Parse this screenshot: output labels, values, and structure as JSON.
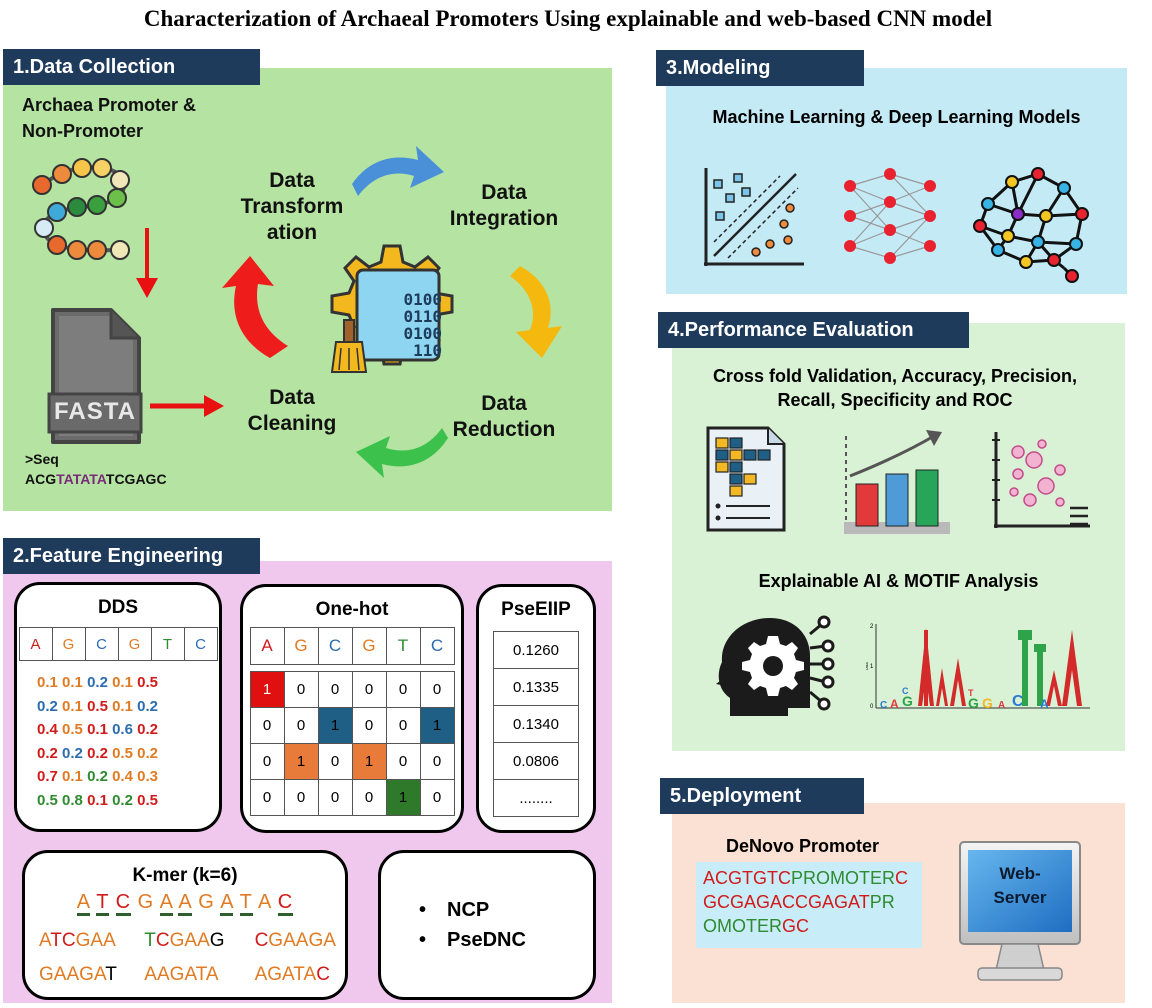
{
  "title": "Characterization of Archaeal Promoters Using explainable and web-based CNN model",
  "section1": {
    "header": "1.Data Collection",
    "subtitle_line1": "Archaea Promoter &",
    "subtitle_line2": "Non-Promoter",
    "fasta_label": "FASTA",
    "seq_header": ">Seq",
    "seq_a": "ACG",
    "seq_b": "TATATA",
    "seq_c": "TCGAGC",
    "cycle": {
      "transformation_1": "Data",
      "transformation_2": "Transform",
      "transformation_3": "ation",
      "integration_1": "Data",
      "integration_2": "Integration",
      "reduction_1": "Data",
      "reduction_2": "Reduction",
      "cleaning_1": "Data",
      "cleaning_2": "Cleaning"
    },
    "binary": [
      "0100",
      "0110",
      "0100",
      "110"
    ]
  },
  "section2": {
    "header": "2.Feature Engineering",
    "dds": {
      "title": "DDS",
      "letters": [
        "A",
        "G",
        "C",
        "G",
        "T",
        "C"
      ],
      "rows": [
        [
          [
            "0.1",
            "o"
          ],
          [
            "0.1",
            "o"
          ],
          [
            "0.2",
            "b"
          ],
          [
            "0.1",
            "o"
          ],
          [
            "0.5",
            "r"
          ]
        ],
        [
          [
            "0.2",
            "b"
          ],
          [
            "0.1",
            "o"
          ],
          [
            "0.5",
            "r"
          ],
          [
            "0.1",
            "o"
          ],
          [
            "0.2",
            "b"
          ]
        ],
        [
          [
            "0.4",
            "r"
          ],
          [
            "0.5",
            "o"
          ],
          [
            "0.1",
            "r"
          ],
          [
            "0.6",
            "b"
          ],
          [
            "0.2",
            "r"
          ]
        ],
        [
          [
            "0.2",
            "r"
          ],
          [
            "0.2",
            "b"
          ],
          [
            "0.2",
            "r"
          ],
          [
            "0.5",
            "o"
          ],
          [
            "0.2",
            "o"
          ]
        ],
        [
          [
            "0.7",
            "r"
          ],
          [
            "0.1",
            "o"
          ],
          [
            "0.2",
            "g"
          ],
          [
            "0.4",
            "o"
          ],
          [
            "0.3",
            "o"
          ]
        ],
        [
          [
            "0.5",
            "g"
          ],
          [
            "0.8",
            "g"
          ],
          [
            "0.1",
            "r"
          ],
          [
            "0.2",
            "g"
          ],
          [
            "0.5",
            "r"
          ]
        ]
      ]
    },
    "onehot": {
      "title": "One-hot",
      "letters": [
        "A",
        "G",
        "C",
        "G",
        "T",
        "C"
      ],
      "rows": [
        [
          "1",
          "0",
          "0",
          "0",
          "0",
          "0"
        ],
        [
          "0",
          "0",
          "1",
          "0",
          "0",
          "1"
        ],
        [
          "0",
          "1",
          "0",
          "1",
          "0",
          "0"
        ],
        [
          "0",
          "0",
          "0",
          "0",
          "1",
          "0"
        ]
      ]
    },
    "pseeiip": {
      "title": "PseEIIP",
      "values": [
        "0.1260",
        "0.1335",
        "0.1340",
        "0.0806",
        "........"
      ]
    },
    "kmer": {
      "title": "K-mer (k=6)",
      "seq": [
        "A",
        "T",
        "C",
        "G",
        "A",
        "A",
        "G",
        "A",
        "T",
        "A",
        "C"
      ],
      "words": [
        [
          [
            "A",
            "o"
          ],
          [
            "T",
            "r"
          ],
          [
            "C",
            "r"
          ],
          [
            "G",
            "o"
          ],
          [
            "A",
            "o"
          ],
          [
            "A",
            "o"
          ]
        ],
        [
          [
            "T",
            "g"
          ],
          [
            "C",
            "r"
          ],
          [
            "G",
            "o"
          ],
          [
            "A",
            "o"
          ],
          [
            "A",
            "o"
          ],
          [
            "G",
            "k"
          ]
        ],
        [
          [
            "C",
            "r"
          ],
          [
            "G",
            "o"
          ],
          [
            "A",
            "o"
          ],
          [
            "A",
            "o"
          ],
          [
            "G",
            "o"
          ],
          [
            "A",
            "o"
          ]
        ],
        [
          [
            "G",
            "o"
          ],
          [
            "A",
            "o"
          ],
          [
            "A",
            "o"
          ],
          [
            "G",
            "o"
          ],
          [
            "A",
            "o"
          ],
          [
            "T",
            "k"
          ]
        ],
        [
          [
            "A",
            "o"
          ],
          [
            "A",
            "o"
          ],
          [
            "G",
            "o"
          ],
          [
            "A",
            "o"
          ],
          [
            "T",
            "o"
          ],
          [
            "A",
            "o"
          ]
        ],
        [
          [
            "A",
            "o"
          ],
          [
            "G",
            "o"
          ],
          [
            "A",
            "o"
          ],
          [
            "T",
            "o"
          ],
          [
            "A",
            "o"
          ],
          [
            "C",
            "r"
          ]
        ]
      ]
    },
    "others": [
      "NCP",
      "PseDNC"
    ]
  },
  "section3": {
    "header": "3.Modeling",
    "subtitle": "Machine Learning & Deep Learning Models"
  },
  "section4": {
    "header": "4.Performance Evaluation",
    "subtitle_1": "Cross fold Validation, Accuracy, Precision,",
    "subtitle_2": "Recall, Specificity  and ROC",
    "subtitle_3": "Explainable AI & MOTIF Analysis",
    "logo_ylabel": "bits",
    "logo_y_2": "2",
    "logo_y_1": "1",
    "logo_y_0": "0"
  },
  "section5": {
    "header": "5.Deployment",
    "subtitle": "DeNovo Promoter",
    "seq_line1_a": "ACGTGTC",
    "seq_line1_b": "PROMOTER",
    "seq_line1_c": "C",
    "seq_line2_a": "GCGAGACCGAGAT",
    "seq_line2_b": "PR",
    "seq_line3_a": "OMOTER",
    "seq_line3_b": "GC",
    "server_1": "Web-",
    "server_2": "Server"
  },
  "colors": {
    "header_bg": "#1f3b5c",
    "data_collection_bg": "#b5e3a1",
    "feature_bg": "#f0c8ee",
    "modeling_bg": "#c4eaf6",
    "evaluation_bg": "#d9f1d4",
    "deployment_bg": "#fbe0d4"
  }
}
